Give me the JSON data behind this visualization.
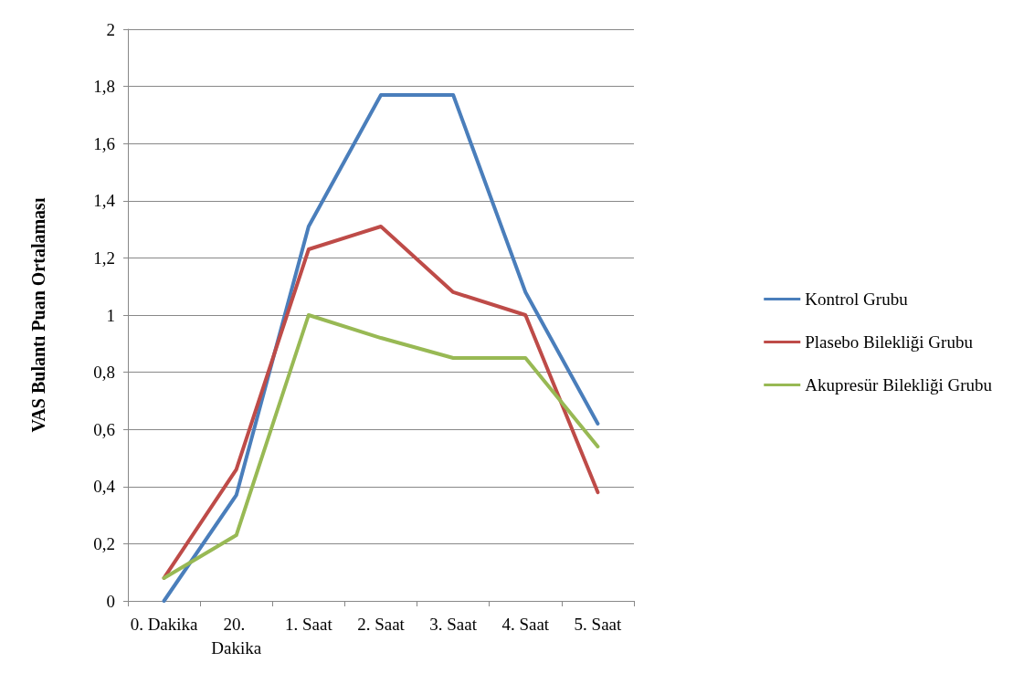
{
  "chart_data": {
    "type": "line",
    "ylabel": "VAS Bulantı Puan Ortalaması",
    "categories": [
      "0. Dakika",
      "20. Dakika",
      "1. Saat",
      "2. Saat",
      "3. Saat",
      "4. Saat",
      "5. Saat"
    ],
    "series": [
      {
        "name": "Kontrol Grubu",
        "color": "#4a7ebb",
        "values": [
          0,
          0.37,
          1.31,
          1.77,
          1.77,
          1.08,
          0.62
        ]
      },
      {
        "name": "Plasebo Bilekliği Grubu",
        "color": "#be4b48",
        "values": [
          0.08,
          0.46,
          1.23,
          1.31,
          1.08,
          1.0,
          0.38
        ]
      },
      {
        "name": "Akupresür Bilekliği Grubu",
        "color": "#98b954",
        "values": [
          0.08,
          0.23,
          1.0,
          0.92,
          0.85,
          0.85,
          0.54
        ]
      }
    ],
    "ylim": [
      0,
      2
    ],
    "yticks": [
      0,
      {
        "value": 0.2,
        "label": "0,2"
      },
      {
        "value": 0.4,
        "label": "0,4"
      },
      {
        "value": 0.6,
        "label": "0,6"
      },
      {
        "value": 0.8,
        "label": "0,8"
      },
      1,
      {
        "value": 1.2,
        "label": "1,2"
      },
      {
        "value": 1.4,
        "label": "1,4"
      },
      {
        "value": 1.6,
        "label": "1,6"
      },
      {
        "value": 1.8,
        "label": "1,8"
      },
      2
    ],
    "grid": "y",
    "legend": "right",
    "marker": "none",
    "line_style": "solid"
  }
}
